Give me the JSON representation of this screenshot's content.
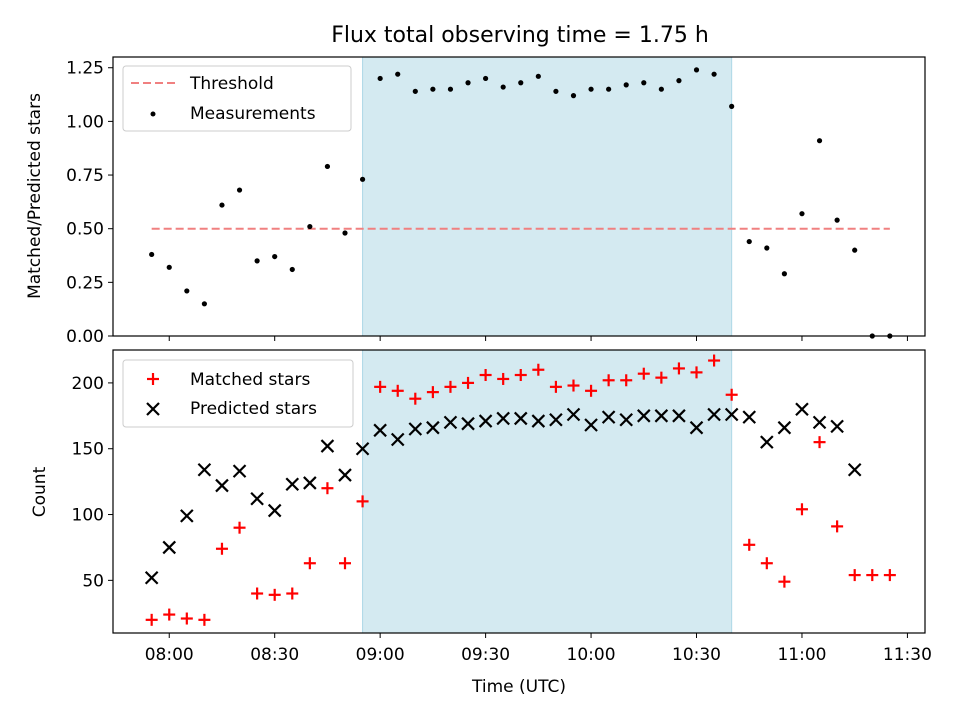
{
  "chart_data": [
    {
      "type": "scatter",
      "title": "Flux total observing time = 1.75 h",
      "xlabel": "",
      "ylabel": "Matched/Predicted stars",
      "ylim": [
        0,
        1.3
      ],
      "yticks": [
        "0.00",
        "0.25",
        "0.50",
        "0.75",
        "1.00",
        "1.25"
      ],
      "ytick_values": [
        0,
        0.25,
        0.5,
        0.75,
        1.0,
        1.25
      ],
      "xlim": [
        "07:44",
        "11:35"
      ],
      "shaded_interval": [
        "08:55",
        "10:40"
      ],
      "shaded_color": "#d4eaf1",
      "legend": {
        "placement": "upper-left",
        "entries": [
          "Threshold",
          "Measurements"
        ]
      },
      "threshold": {
        "name": "Threshold",
        "value": 0.5,
        "x_range": [
          "07:55",
          "11:25"
        ],
        "color": "#f08080",
        "style": "dashed"
      },
      "series": [
        {
          "name": "Measurements",
          "color": "#000000",
          "marker": "dot",
          "x": [
            "07:55",
            "08:00",
            "08:05",
            "08:10",
            "08:15",
            "08:20",
            "08:25",
            "08:30",
            "08:35",
            "08:40",
            "08:45",
            "08:50",
            "08:55",
            "09:00",
            "09:05",
            "09:10",
            "09:15",
            "09:20",
            "09:25",
            "09:30",
            "09:35",
            "09:40",
            "09:45",
            "09:50",
            "09:55",
            "10:00",
            "10:05",
            "10:10",
            "10:15",
            "10:20",
            "10:25",
            "10:30",
            "10:35",
            "10:40",
            "10:45",
            "10:50",
            "10:55",
            "11:00",
            "11:05",
            "11:10",
            "11:15",
            "11:20",
            "11:25"
          ],
          "y": [
            0.38,
            0.32,
            0.21,
            0.15,
            0.61,
            0.68,
            0.35,
            0.37,
            0.31,
            0.51,
            0.79,
            0.48,
            0.73,
            1.2,
            1.22,
            1.14,
            1.15,
            1.15,
            1.18,
            1.2,
            1.16,
            1.18,
            1.21,
            1.14,
            1.12,
            1.15,
            1.15,
            1.17,
            1.18,
            1.15,
            1.19,
            1.24,
            1.22,
            1.07,
            0.44,
            0.41,
            0.29,
            0.57,
            0.91,
            0.54,
            0.4,
            0.0,
            0.0
          ]
        }
      ]
    },
    {
      "type": "scatter",
      "title": "",
      "xlabel": "Time (UTC)",
      "ylabel": "Count",
      "ylim": [
        10,
        225
      ],
      "yticks": [
        "50",
        "100",
        "150",
        "200"
      ],
      "ytick_values": [
        50,
        100,
        150,
        200
      ],
      "xlim": [
        "07:44",
        "11:35"
      ],
      "xticks": [
        "08:00",
        "08:30",
        "09:00",
        "09:30",
        "10:00",
        "10:30",
        "11:00",
        "11:30"
      ],
      "shaded_interval": [
        "08:55",
        "10:40"
      ],
      "shaded_color": "#d4eaf1",
      "legend": {
        "placement": "upper-left",
        "entries": [
          "Matched stars",
          "Predicted stars"
        ]
      },
      "series": [
        {
          "name": "Matched stars",
          "color": "#ff0000",
          "marker": "plus",
          "x": [
            "07:55",
            "08:00",
            "08:05",
            "08:10",
            "08:15",
            "08:20",
            "08:25",
            "08:30",
            "08:35",
            "08:40",
            "08:45",
            "08:50",
            "08:55",
            "09:00",
            "09:05",
            "09:10",
            "09:15",
            "09:20",
            "09:25",
            "09:30",
            "09:35",
            "09:40",
            "09:45",
            "09:50",
            "09:55",
            "10:00",
            "10:05",
            "10:10",
            "10:15",
            "10:20",
            "10:25",
            "10:30",
            "10:35",
            "10:40",
            "10:45",
            "10:50",
            "10:55",
            "11:00",
            "11:05",
            "11:10",
            "11:15",
            "11:20",
            "11:25"
          ],
          "y": [
            20,
            24,
            21,
            20,
            74,
            90,
            40,
            39,
            40,
            63,
            120,
            63,
            110,
            197,
            194,
            188,
            193,
            197,
            200,
            206,
            203,
            206,
            210,
            197,
            198,
            194,
            202,
            202,
            207,
            204,
            211,
            208,
            217,
            191,
            77,
            63,
            49,
            104,
            155,
            91,
            54,
            54,
            54
          ]
        },
        {
          "name": "Predicted stars",
          "color": "#000000",
          "marker": "x",
          "x": [
            "07:55",
            "08:00",
            "08:05",
            "08:10",
            "08:15",
            "08:20",
            "08:25",
            "08:30",
            "08:35",
            "08:40",
            "08:45",
            "08:50",
            "08:55",
            "09:00",
            "09:05",
            "09:10",
            "09:15",
            "09:20",
            "09:25",
            "09:30",
            "09:35",
            "09:40",
            "09:45",
            "09:50",
            "09:55",
            "10:00",
            "10:05",
            "10:10",
            "10:15",
            "10:20",
            "10:25",
            "10:30",
            "10:35",
            "10:40",
            "10:45",
            "10:50",
            "10:55",
            "11:00",
            "11:05",
            "11:10",
            "11:15"
          ],
          "y": [
            52,
            75,
            99,
            134,
            122,
            133,
            112,
            103,
            123,
            124,
            152,
            130,
            150,
            164,
            157,
            165,
            166,
            170,
            169,
            171,
            173,
            173,
            171,
            172,
            176,
            168,
            174,
            172,
            175,
            175,
            175,
            166,
            176,
            176,
            174,
            155,
            166,
            180,
            170,
            167,
            134
          ]
        }
      ]
    }
  ]
}
